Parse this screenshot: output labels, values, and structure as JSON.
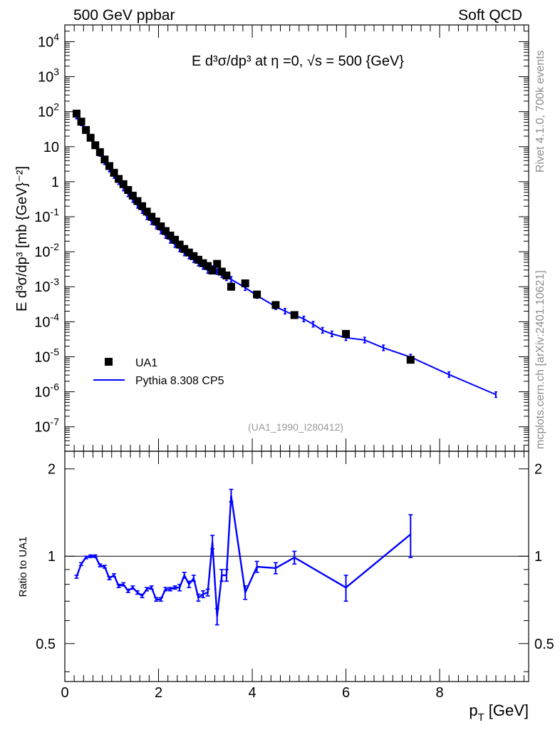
{
  "header": {
    "left": "500 GeV ppbar",
    "right": "Soft QCD"
  },
  "side": {
    "rivet": "Rivet 4.1.0,  700k events",
    "mcplots": "mcplots.cern.ch [arXiv:2401.10621]"
  },
  "chart_data": {
    "type": "scatter",
    "title": "E  d³σ/dp³ at η =0, √s = 500 {GeV}",
    "ylabel": "E d³σ/dp³ [mb {GeV}⁻²]",
    "xlabel": "p_T [GeV]",
    "xlabel_main": "p",
    "xlabel_sub": "T",
    "xlabel_unit": "[GeV]",
    "ratio_ylabel": "Ratio to UA1",
    "analysis_tag": "(UA1_1990_I280412)",
    "xlim": [
      0,
      9.9
    ],
    "ylim": [
      2e-08,
      30000.0
    ],
    "ratio_ylim": [
      0.37,
      2.3
    ],
    "legend_position": "lower-left",
    "x_ticks": [
      "0",
      "2",
      "4",
      "6",
      "8"
    ],
    "y_ticks": [
      {
        "base": "10",
        "exp": "4"
      },
      {
        "base": "10",
        "exp": "3"
      },
      {
        "base": "10",
        "exp": "2"
      },
      {
        "base": "10",
        "exp": ""
      },
      {
        "base": "1",
        "exp": ""
      },
      {
        "base": "10",
        "exp": "-1"
      },
      {
        "base": "10",
        "exp": "-2"
      },
      {
        "base": "10",
        "exp": "-3"
      },
      {
        "base": "10",
        "exp": "-4"
      },
      {
        "base": "10",
        "exp": "-5"
      },
      {
        "base": "10",
        "exp": "-6"
      },
      {
        "base": "10",
        "exp": "-7"
      }
    ],
    "ratio_ticks": [
      "2",
      "1",
      "0.5"
    ],
    "series": [
      {
        "name": "UA1",
        "color": "#000000",
        "marker": "square",
        "x": [
          0.25,
          0.35,
          0.45,
          0.55,
          0.65,
          0.75,
          0.85,
          0.95,
          1.05,
          1.15,
          1.25,
          1.35,
          1.45,
          1.55,
          1.65,
          1.75,
          1.85,
          1.95,
          2.05,
          2.15,
          2.25,
          2.35,
          2.45,
          2.55,
          2.65,
          2.75,
          2.85,
          2.95,
          3.05,
          3.15,
          3.25,
          3.35,
          3.45,
          3.55,
          3.85,
          4.1,
          4.5,
          4.9,
          6.0,
          7.38
        ],
        "y": [
          88,
          52,
          30,
          18,
          11,
          7.0,
          4.3,
          2.8,
          1.8,
          1.2,
          0.85,
          0.58,
          0.4,
          0.28,
          0.2,
          0.14,
          0.1,
          0.073,
          0.053,
          0.039,
          0.029,
          0.022,
          0.016,
          0.012,
          0.0095,
          0.0075,
          0.0059,
          0.0047,
          0.0039,
          0.0029,
          0.0045,
          0.0027,
          0.0021,
          0.001,
          0.00125,
          0.0006,
          0.0003,
          0.000155,
          4.5e-05,
          8.2e-06
        ]
      },
      {
        "name": "Pythia 8.308 CP5",
        "color": "#0000ff",
        "marker": "line",
        "x": [
          0.25,
          0.35,
          0.45,
          0.55,
          0.65,
          0.75,
          0.85,
          0.95,
          1.05,
          1.15,
          1.25,
          1.35,
          1.45,
          1.55,
          1.65,
          1.75,
          1.85,
          1.95,
          2.05,
          2.15,
          2.25,
          2.35,
          2.45,
          2.55,
          2.65,
          2.75,
          2.85,
          2.95,
          3.05,
          3.15,
          3.25,
          3.35,
          3.45,
          3.55,
          3.85,
          4.1,
          4.5,
          4.9,
          6.0,
          7.38,
          4.7,
          5.1,
          5.3,
          5.5,
          5.7,
          6.4,
          6.8,
          8.2,
          9.2
        ],
        "y": [
          75,
          48,
          30,
          18,
          11,
          6.4,
          3.7,
          2.3,
          1.5,
          1.0,
          0.66,
          0.45,
          0.31,
          0.21,
          0.15,
          0.1,
          0.072,
          0.054,
          0.039,
          0.029,
          0.021,
          0.016,
          0.012,
          0.0092,
          0.0075,
          0.0059,
          0.0047,
          0.0038,
          0.0029,
          0.0033,
          0.0027,
          0.0022,
          0.0018,
          0.00163,
          0.00094,
          0.00056,
          0.00027,
          0.000155,
          3.5e-05,
          9.8e-06,
          0.0002,
          0.00012,
          8.5e-05,
          5.7e-05,
          4.5e-05,
          3e-05,
          1.8e-05,
          3.1e-06,
          8.3e-07
        ]
      }
    ],
    "ratio": {
      "x": [
        0.25,
        0.35,
        0.45,
        0.55,
        0.65,
        0.75,
        0.85,
        0.95,
        1.05,
        1.15,
        1.25,
        1.35,
        1.45,
        1.55,
        1.65,
        1.75,
        1.85,
        1.95,
        2.05,
        2.15,
        2.25,
        2.35,
        2.45,
        2.55,
        2.65,
        2.75,
        2.85,
        2.95,
        3.05,
        3.15,
        3.25,
        3.35,
        3.45,
        3.55,
        3.85,
        4.1,
        4.5,
        4.9,
        6.0,
        7.38
      ],
      "y": [
        0.85,
        0.94,
        0.99,
        1.0,
        1.0,
        0.93,
        0.92,
        0.84,
        0.86,
        0.79,
        0.8,
        0.76,
        0.78,
        0.75,
        0.73,
        0.77,
        0.78,
        0.71,
        0.71,
        0.77,
        0.77,
        0.78,
        0.78,
        0.86,
        0.8,
        0.84,
        0.72,
        0.74,
        0.75,
        1.12,
        0.62,
        0.86,
        0.86,
        1.62,
        0.75,
        0.92,
        0.91,
        0.99,
        0.78,
        1.19
      ],
      "err": [
        0.01,
        0.01,
        0.01,
        0.01,
        0.01,
        0.01,
        0.01,
        0.01,
        0.01,
        0.01,
        0.01,
        0.01,
        0.01,
        0.01,
        0.01,
        0.01,
        0.01,
        0.01,
        0.01,
        0.01,
        0.01,
        0.01,
        0.02,
        0.02,
        0.02,
        0.02,
        0.02,
        0.02,
        0.02,
        0.06,
        0.04,
        0.04,
        0.04,
        0.08,
        0.04,
        0.04,
        0.04,
        0.05,
        0.08,
        0.2
      ]
    }
  },
  "colors": {
    "data": "#000000",
    "mc": "#0000ff",
    "side_text": "#8c8c8c",
    "tag_text": "#999999"
  }
}
